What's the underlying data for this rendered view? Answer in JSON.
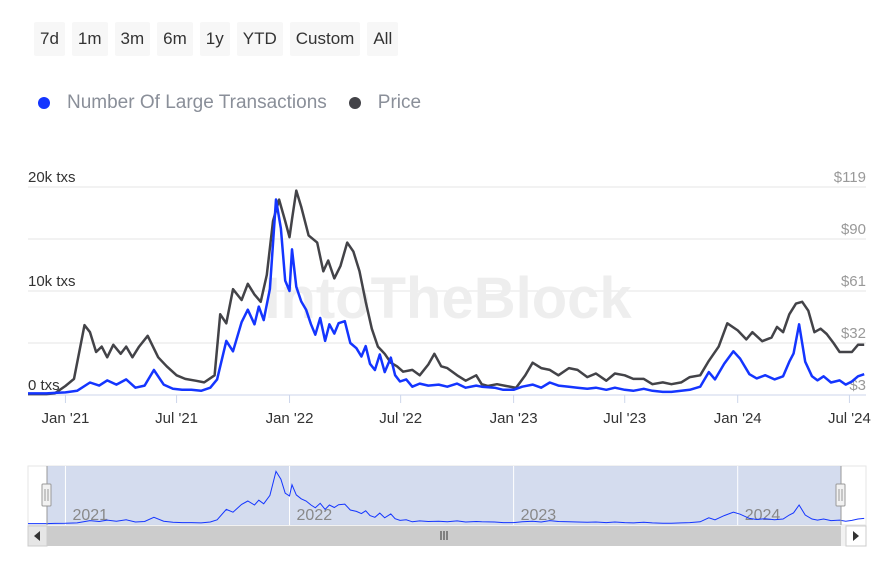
{
  "range_buttons": [
    "7d",
    "1m",
    "3m",
    "6m",
    "1y",
    "YTD",
    "Custom",
    "All"
  ],
  "watermark": "IntoTheBlock",
  "colors": {
    "transactions": "#1435ff",
    "price": "#434348",
    "navigator_mask": "#ccd6eb",
    "grid": "#e6e6e6"
  },
  "chart_data": {
    "type": "line",
    "legend": [
      {
        "name": "Number Of Large Transactions",
        "color": "#1435ff"
      },
      {
        "name": "Price",
        "color": "#434348"
      }
    ],
    "legend_position": "top-left",
    "x_ticks": [
      "Jan '21",
      "Jul '21",
      "Jan '22",
      "Jul '22",
      "Jan '23",
      "Jul '23",
      "Jan '24",
      "Jul '24"
    ],
    "y_left_ticks": [
      "0 txs",
      "10k txs",
      "20k txs"
    ],
    "y_right_ticks": [
      "$3",
      "$32",
      "$61",
      "$90",
      "$119"
    ],
    "x_range": [
      "2020-11",
      "2024-07"
    ],
    "y_left_range": [
      0,
      20000
    ],
    "y_right_range": [
      3,
      119
    ],
    "grid": true,
    "navigator_labels": [
      "2021",
      "2022",
      "2023",
      "2024"
    ],
    "series": [
      {
        "name": "Number Of Large Transactions",
        "axis": "left",
        "points": [
          [
            "2020-11-01",
            150
          ],
          [
            "2020-12-01",
            150
          ],
          [
            "2020-12-15",
            200
          ],
          [
            "2021-01-01",
            250
          ],
          [
            "2021-01-20",
            400
          ],
          [
            "2021-02-10",
            1200
          ],
          [
            "2021-02-25",
            900
          ],
          [
            "2021-03-10",
            1400
          ],
          [
            "2021-03-25",
            1000
          ],
          [
            "2021-04-10",
            1500
          ],
          [
            "2021-04-25",
            700
          ],
          [
            "2021-05-10",
            900
          ],
          [
            "2021-05-25",
            2400
          ],
          [
            "2021-06-10",
            1000
          ],
          [
            "2021-06-25",
            600
          ],
          [
            "2021-07-10",
            500
          ],
          [
            "2021-07-25",
            500
          ],
          [
            "2021-08-10",
            400
          ],
          [
            "2021-08-25",
            700
          ],
          [
            "2021-09-05",
            1500
          ],
          [
            "2021-09-20",
            5200
          ],
          [
            "2021-10-01",
            4200
          ],
          [
            "2021-10-15",
            7000
          ],
          [
            "2021-10-25",
            8200
          ],
          [
            "2021-11-05",
            6800
          ],
          [
            "2021-11-12",
            8500
          ],
          [
            "2021-11-20",
            7200
          ],
          [
            "2021-11-30",
            10200
          ],
          [
            "2021-12-10",
            18800
          ],
          [
            "2021-12-18",
            16000
          ],
          [
            "2021-12-25",
            11000
          ],
          [
            "2022-01-01",
            10000
          ],
          [
            "2022-01-05",
            14000
          ],
          [
            "2022-01-12",
            10400
          ],
          [
            "2022-01-20",
            9000
          ],
          [
            "2022-01-28",
            8200
          ],
          [
            "2022-02-05",
            6800
          ],
          [
            "2022-02-12",
            5800
          ],
          [
            "2022-02-20",
            7400
          ],
          [
            "2022-02-28",
            5200
          ],
          [
            "2022-03-07",
            6800
          ],
          [
            "2022-03-15",
            5900
          ],
          [
            "2022-03-22",
            6900
          ],
          [
            "2022-04-01",
            7100
          ],
          [
            "2022-04-10",
            5000
          ],
          [
            "2022-04-20",
            4500
          ],
          [
            "2022-04-28",
            3700
          ],
          [
            "2022-05-05",
            4700
          ],
          [
            "2022-05-12",
            3000
          ],
          [
            "2022-05-20",
            2400
          ],
          [
            "2022-05-28",
            3900
          ],
          [
            "2022-06-05",
            2200
          ],
          [
            "2022-06-15",
            3600
          ],
          [
            "2022-06-22",
            1900
          ],
          [
            "2022-06-30",
            1300
          ],
          [
            "2022-07-10",
            1500
          ],
          [
            "2022-07-20",
            800
          ],
          [
            "2022-08-01",
            1100
          ],
          [
            "2022-08-15",
            900
          ],
          [
            "2022-09-01",
            1000
          ],
          [
            "2022-09-15",
            800
          ],
          [
            "2022-10-01",
            1100
          ],
          [
            "2022-10-15",
            700
          ],
          [
            "2022-11-01",
            900
          ],
          [
            "2022-11-10",
            800
          ],
          [
            "2022-12-01",
            700
          ],
          [
            "2022-12-15",
            500
          ],
          [
            "2023-01-01",
            500
          ],
          [
            "2023-01-15",
            800
          ],
          [
            "2023-02-01",
            1000
          ],
          [
            "2023-02-15",
            700
          ],
          [
            "2023-03-01",
            1200
          ],
          [
            "2023-03-15",
            900
          ],
          [
            "2023-04-01",
            800
          ],
          [
            "2023-04-15",
            700
          ],
          [
            "2023-05-01",
            600
          ],
          [
            "2023-05-15",
            700
          ],
          [
            "2023-06-01",
            500
          ],
          [
            "2023-06-15",
            700
          ],
          [
            "2023-07-01",
            500
          ],
          [
            "2023-07-15",
            400
          ],
          [
            "2023-08-01",
            600
          ],
          [
            "2023-08-15",
            400
          ],
          [
            "2023-09-01",
            300
          ],
          [
            "2023-09-15",
            300
          ],
          [
            "2023-10-01",
            400
          ],
          [
            "2023-10-15",
            500
          ],
          [
            "2023-11-01",
            800
          ],
          [
            "2023-11-15",
            2200
          ],
          [
            "2023-11-25",
            1500
          ],
          [
            "2023-12-10",
            3000
          ],
          [
            "2023-12-25",
            4200
          ],
          [
            "2024-01-05",
            3500
          ],
          [
            "2024-01-20",
            2000
          ],
          [
            "2024-02-01",
            1600
          ],
          [
            "2024-02-15",
            1900
          ],
          [
            "2024-03-01",
            1500
          ],
          [
            "2024-03-15",
            1800
          ],
          [
            "2024-03-25",
            3200
          ],
          [
            "2024-04-01",
            4000
          ],
          [
            "2024-04-10",
            6800
          ],
          [
            "2024-04-20",
            3200
          ],
          [
            "2024-05-01",
            1800
          ],
          [
            "2024-05-10",
            1400
          ],
          [
            "2024-05-20",
            1800
          ],
          [
            "2024-06-01",
            1200
          ],
          [
            "2024-06-15",
            1400
          ],
          [
            "2024-06-25",
            1000
          ],
          [
            "2024-07-05",
            1300
          ],
          [
            "2024-07-15",
            1800
          ],
          [
            "2024-07-25",
            2000
          ]
        ]
      },
      {
        "name": "Price",
        "axis": "right",
        "points": [
          [
            "2020-11-01",
            3.5
          ],
          [
            "2020-12-01",
            3.5
          ],
          [
            "2020-12-15",
            4
          ],
          [
            "2021-01-01",
            8
          ],
          [
            "2021-01-15",
            12
          ],
          [
            "2021-02-01",
            42
          ],
          [
            "2021-02-10",
            38
          ],
          [
            "2021-02-20",
            27
          ],
          [
            "2021-03-01",
            30
          ],
          [
            "2021-03-10",
            24
          ],
          [
            "2021-03-20",
            31
          ],
          [
            "2021-04-01",
            26
          ],
          [
            "2021-04-10",
            30
          ],
          [
            "2021-04-20",
            24
          ],
          [
            "2021-05-01",
            30
          ],
          [
            "2021-05-15",
            36
          ],
          [
            "2021-06-01",
            24
          ],
          [
            "2021-06-15",
            19
          ],
          [
            "2021-07-01",
            14
          ],
          [
            "2021-07-15",
            12
          ],
          [
            "2021-08-01",
            11
          ],
          [
            "2021-08-15",
            10
          ],
          [
            "2021-09-01",
            14
          ],
          [
            "2021-09-10",
            48
          ],
          [
            "2021-09-20",
            43
          ],
          [
            "2021-10-01",
            62
          ],
          [
            "2021-10-15",
            56
          ],
          [
            "2021-10-25",
            65
          ],
          [
            "2021-11-05",
            59
          ],
          [
            "2021-11-15",
            55
          ],
          [
            "2021-11-25",
            70
          ],
          [
            "2021-12-05",
            100
          ],
          [
            "2021-12-15",
            112
          ],
          [
            "2021-12-25",
            100
          ],
          [
            "2022-01-01",
            91
          ],
          [
            "2022-01-05",
            101
          ],
          [
            "2022-01-12",
            117
          ],
          [
            "2022-01-20",
            108
          ],
          [
            "2022-02-01",
            92
          ],
          [
            "2022-02-15",
            88
          ],
          [
            "2022-02-25",
            72
          ],
          [
            "2022-03-05",
            78
          ],
          [
            "2022-03-15",
            68
          ],
          [
            "2022-03-25",
            75
          ],
          [
            "2022-04-05",
            88
          ],
          [
            "2022-04-15",
            83
          ],
          [
            "2022-04-25",
            72
          ],
          [
            "2022-05-05",
            55
          ],
          [
            "2022-05-15",
            40
          ],
          [
            "2022-05-25",
            30
          ],
          [
            "2022-06-05",
            26
          ],
          [
            "2022-06-15",
            21
          ],
          [
            "2022-06-25",
            19
          ],
          [
            "2022-07-05",
            16
          ],
          [
            "2022-07-20",
            17
          ],
          [
            "2022-08-01",
            14
          ],
          [
            "2022-08-15",
            20
          ],
          [
            "2022-08-25",
            26
          ],
          [
            "2022-09-05",
            19
          ],
          [
            "2022-09-15",
            18
          ],
          [
            "2022-10-01",
            14
          ],
          [
            "2022-10-15",
            11
          ],
          [
            "2022-11-01",
            14
          ],
          [
            "2022-11-10",
            9
          ],
          [
            "2022-11-20",
            8
          ],
          [
            "2022-12-05",
            9
          ],
          [
            "2022-12-20",
            8
          ],
          [
            "2023-01-05",
            7
          ],
          [
            "2023-01-20",
            14
          ],
          [
            "2023-02-01",
            21
          ],
          [
            "2023-02-15",
            18
          ],
          [
            "2023-03-01",
            17
          ],
          [
            "2023-03-15",
            14
          ],
          [
            "2023-04-01",
            18
          ],
          [
            "2023-04-15",
            17
          ],
          [
            "2023-05-01",
            13
          ],
          [
            "2023-05-15",
            15
          ],
          [
            "2023-06-01",
            11
          ],
          [
            "2023-06-15",
            15
          ],
          [
            "2023-07-01",
            14
          ],
          [
            "2023-07-15",
            12
          ],
          [
            "2023-08-01",
            12
          ],
          [
            "2023-08-15",
            9
          ],
          [
            "2023-09-01",
            10
          ],
          [
            "2023-09-15",
            9
          ],
          [
            "2023-10-01",
            10
          ],
          [
            "2023-10-15",
            13
          ],
          [
            "2023-11-01",
            14
          ],
          [
            "2023-11-15",
            22
          ],
          [
            "2023-12-01",
            30
          ],
          [
            "2023-12-15",
            43
          ],
          [
            "2024-01-01",
            39
          ],
          [
            "2024-01-15",
            34
          ],
          [
            "2024-01-25",
            38
          ],
          [
            "2024-02-10",
            33
          ],
          [
            "2024-02-25",
            35
          ],
          [
            "2024-03-05",
            41
          ],
          [
            "2024-03-15",
            38
          ],
          [
            "2024-03-25",
            48
          ],
          [
            "2024-04-05",
            54
          ],
          [
            "2024-04-15",
            55
          ],
          [
            "2024-04-25",
            50
          ],
          [
            "2024-05-05",
            38
          ],
          [
            "2024-05-15",
            40
          ],
          [
            "2024-05-25",
            37
          ],
          [
            "2024-06-05",
            32
          ],
          [
            "2024-06-15",
            27
          ],
          [
            "2024-06-25",
            27
          ],
          [
            "2024-07-05",
            27
          ],
          [
            "2024-07-15",
            31
          ],
          [
            "2024-07-25",
            31
          ]
        ]
      }
    ]
  }
}
